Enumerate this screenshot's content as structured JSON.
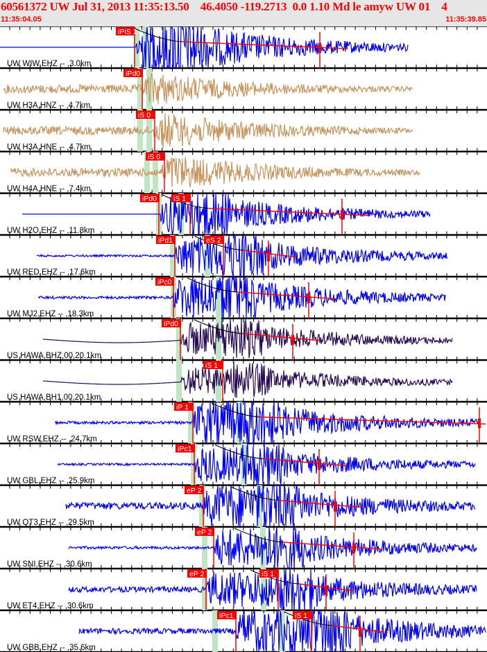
{
  "header": {
    "title": "60561372 UW Jul 31, 2013 11:35:13.50    46.4050 -119.2713  0.0 1.10 Md le amyw UW 01    4",
    "start_time": "11:35:04.05",
    "end_time": "11:35:39.85"
  },
  "colors": {
    "vertical": "#0000ff",
    "accelerometer": "#c8955f",
    "broadband": "#2a0c55",
    "pick": "#ff0000",
    "pick_window": "#bfe6c3",
    "coda": "#ff0000",
    "fit_curve": "#000000"
  },
  "traces": [
    {
      "label": "UW WIW,EHZ -- ,3.0km",
      "color": "#0000ff",
      "picks": [
        "iPiS 1"
      ]
    },
    {
      "label": "UW H3A,HNZ -- ,4.7km",
      "color": "#c8955f",
      "picks": [
        "iPd0"
      ]
    },
    {
      "label": "UW H3A,HNE -- ,4.7km",
      "color": "#c8955f",
      "picks": [
        "iS 0"
      ]
    },
    {
      "label": "UW H4A,HNE -- ,7.4km",
      "color": "#c8955f",
      "picks": [
        "iS 0"
      ]
    },
    {
      "label": "UW H2O,EHZ -- ,11.8km",
      "color": "#0000ff",
      "picks": [
        "iPd0",
        "iS 1"
      ]
    },
    {
      "label": "UW RED,EHZ -- ,17.6km",
      "color": "#0000ff",
      "picks": [
        "iPd1",
        "eS 2"
      ]
    },
    {
      "label": "UW MJ2,EHZ -- ,18.3km",
      "color": "#0000ff",
      "picks": [
        "iPc0"
      ]
    },
    {
      "label": "US HAWA,BHZ,00,20.1km",
      "color": "#2a0c55",
      "picks": [
        "iPd0"
      ]
    },
    {
      "label": "US HAWA,BH1,00,20.1km",
      "color": "#2a0c55",
      "picks": [
        "iS 1"
      ]
    },
    {
      "label": "UW RSW,EHZ -- ,24.7km",
      "color": "#0000ff",
      "picks": [
        "iP 1"
      ]
    },
    {
      "label": "UW GBL,EHZ -- ,25.9km",
      "color": "#0000ff",
      "picks": [
        "iPc1"
      ]
    },
    {
      "label": "UW QT3,EHZ -- ,29.5km",
      "color": "#0000ff",
      "picks": [
        "eP 2"
      ]
    },
    {
      "label": "UW SNI,EHZ -- ,30.6km",
      "color": "#0000ff",
      "picks": [
        "eP 2"
      ]
    },
    {
      "label": "UW ET4,EHZ -- ,30.6km",
      "color": "#0000ff",
      "picks": [
        "eP 2",
        "iS 1"
      ]
    },
    {
      "label": "UW GBB,EHZ -- ,35.6km",
      "color": "#0000ff",
      "picks": [
        "iPc1",
        "iS 1"
      ]
    }
  ]
}
